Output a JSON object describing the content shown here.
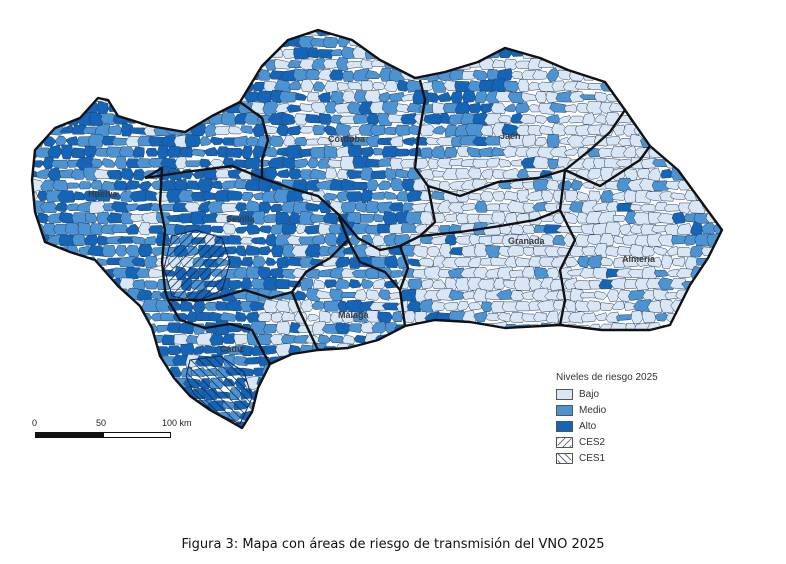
{
  "map": {
    "colors": {
      "bajo": "#d9e6f6",
      "medio": "#4b93d3",
      "alto": "#1464b8",
      "province_border": "#111111",
      "municipal_border": "#2a3f5a"
    },
    "cities": [
      "Huelva",
      "Sevilla",
      "Córdoba",
      "Jaén",
      "Granada",
      "Almería",
      "Málaga",
      "Cádiz"
    ]
  },
  "legend": {
    "title": "Niveles de riesgo 2025",
    "items": [
      {
        "label": "Bajo",
        "color": "#d9e6f6"
      },
      {
        "label": "Medio",
        "color": "#4b93d3"
      },
      {
        "label": "Alto",
        "color": "#1464b8"
      },
      {
        "label": "CES2",
        "pattern": "hatch-right"
      },
      {
        "label": "CES1",
        "pattern": "hatch-left"
      }
    ]
  },
  "scale": {
    "labels": [
      "0",
      "50",
      "100 km"
    ]
  },
  "caption": "Figura 3: Mapa con áreas de riesgo de transmisión del VNO 2025"
}
